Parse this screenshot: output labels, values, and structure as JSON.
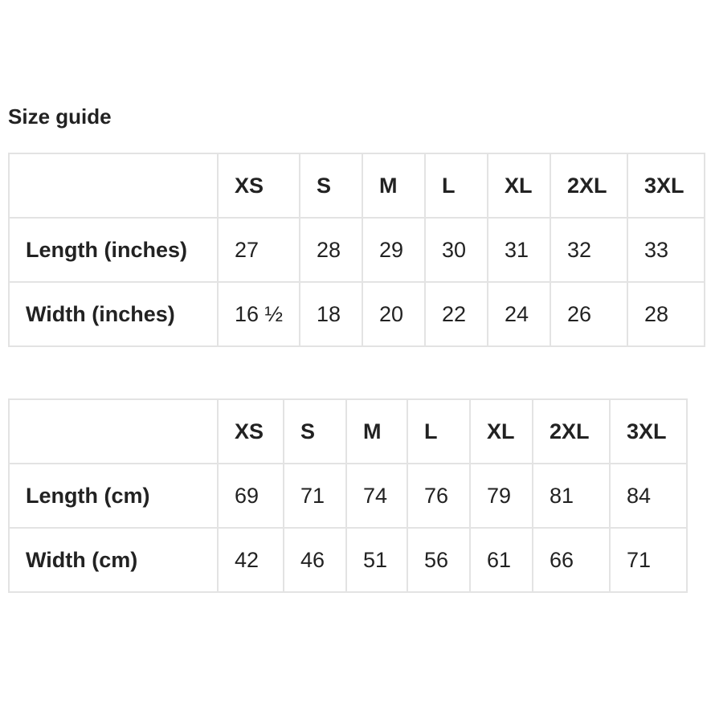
{
  "title": "Size guide",
  "tables": [
    {
      "headers": [
        "",
        "XS",
        "S",
        "M",
        "L",
        "XL",
        "2XL",
        "3XL"
      ],
      "rows": [
        {
          "label": "Length (inches)",
          "values": [
            "27",
            "28",
            "29",
            "30",
            "31",
            "32",
            "33"
          ]
        },
        {
          "label": "Width (inches)",
          "values": [
            "16 ½",
            "18",
            "20",
            "22",
            "24",
            "26",
            "28"
          ]
        }
      ]
    },
    {
      "headers": [
        "",
        "XS",
        "S",
        "M",
        "L",
        "XL",
        "2XL",
        "3XL"
      ],
      "rows": [
        {
          "label": "Length (cm)",
          "values": [
            "69",
            "71",
            "74",
            "76",
            "79",
            "81",
            "84"
          ]
        },
        {
          "label": "Width (cm)",
          "values": [
            "42",
            "46",
            "51",
            "56",
            "61",
            "66",
            "71"
          ]
        }
      ]
    }
  ]
}
